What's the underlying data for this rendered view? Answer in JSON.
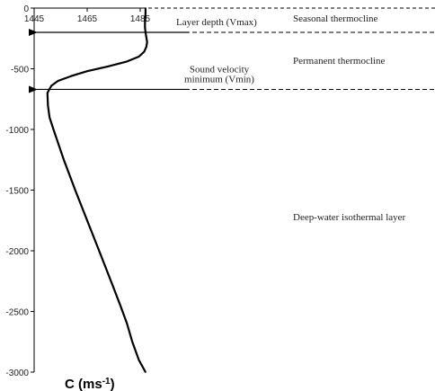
{
  "chart_data": {
    "type": "line",
    "title": "",
    "xlabel": "C (ms",
    "xlabel_superscript": "-1",
    "xlabel_close": ")",
    "ylabel": "",
    "x_axis_position": "top",
    "y_axis_inverted": true,
    "xlim": [
      1445,
      1485
    ],
    "ylim": [
      0,
      -3000
    ],
    "x_ticks": [
      1445,
      1465,
      1485
    ],
    "y_ticks": [
      0,
      -500,
      -1000,
      -1500,
      -2000,
      -2500,
      -3000
    ],
    "series": [
      {
        "x": [
          1487,
          1487,
          1486.9,
          1486.8,
          1486.8,
          1487,
          1487.3,
          1487.6,
          1487.3,
          1486.5,
          1484.5,
          1480,
          1473,
          1465,
          1459,
          1454,
          1451.5,
          1450.7,
          1450,
          1450.2,
          1450.8,
          1452.3,
          1456.2,
          1460.5,
          1465,
          1469.5,
          1474,
          1477.5,
          1480,
          1482,
          1484.5,
          1487
        ],
        "y": [
          0,
          -40,
          -80,
          -120,
          -160,
          -200,
          -240,
          -280,
          -320,
          -360,
          -400,
          -440,
          -480,
          -520,
          -560,
          -600,
          -640,
          -670,
          -700,
          -800,
          -900,
          -1000,
          -1250,
          -1500,
          -1750,
          -2000,
          -2250,
          -2450,
          -2600,
          -2750,
          -2900,
          -3000
        ]
      }
    ],
    "reference_lines": [
      {
        "label": "Layer depth (Vmax)",
        "y": -200,
        "line_style": "dashed",
        "arrow": true
      },
      {
        "label": "Sound velocity minimum (Vmin)",
        "label_lines": [
          "Sound velocity",
          "minimum (Vmin)"
        ],
        "y": -670,
        "line_style": "dashed",
        "arrow": true
      }
    ],
    "annotations": [
      "Seasonal thermocline",
      "Permanent thermocline",
      "Deep-water isothermal layer"
    ],
    "top_dashed_line": true,
    "grid": false,
    "legend": "none"
  }
}
